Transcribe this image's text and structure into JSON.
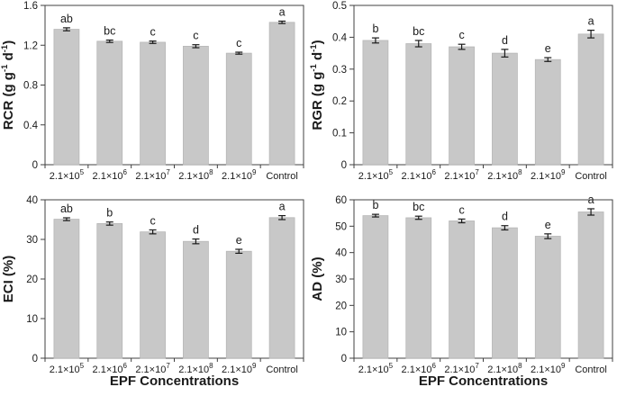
{
  "figure": {
    "background": "#FFFFFF",
    "bar_color": "#C8C8C8",
    "bar_border": "#B5B5B5",
    "axis_color": "#404040",
    "text_color": "#1A1A1A",
    "xlabel": "EPF Concentrations"
  },
  "chart_data": [
    {
      "id": "rcr",
      "type": "bar",
      "ylabel": "RCR (g g-1 d-1)",
      "ylabel_parts": [
        {
          "text": "RCR (g g"
        },
        {
          "text": "-1",
          "sup": true
        },
        {
          "text": " d"
        },
        {
          "text": "-1",
          "sup": true
        },
        {
          "text": ")"
        }
      ],
      "categories": [
        "2.1×10^5",
        "2.1×10^6",
        "2.1×10^7",
        "2.1×10^8",
        "2.1×10^9",
        "Control"
      ],
      "values": [
        1.36,
        1.24,
        1.23,
        1.19,
        1.12,
        1.43
      ],
      "errors": [
        0.015,
        0.012,
        0.012,
        0.015,
        0.01,
        0.012
      ],
      "sig_letters": [
        "ab",
        "bc",
        "c",
        "c",
        "c",
        "a"
      ],
      "ylim": [
        0,
        1.6
      ],
      "yticks": [
        0,
        0.4,
        0.8,
        1.2,
        1.6
      ],
      "ytick_labels": [
        "0",
        "0.4",
        "0.8",
        "1.2",
        "1.6"
      ],
      "grid": false,
      "legend": null
    },
    {
      "id": "rgr",
      "type": "bar",
      "ylabel": "RGR (g g-1 d-1)",
      "ylabel_parts": [
        {
          "text": "RGR (g g"
        },
        {
          "text": "-1",
          "sup": true
        },
        {
          "text": " d"
        },
        {
          "text": "-1",
          "sup": true
        },
        {
          "text": ")"
        }
      ],
      "categories": [
        "2.1×10^5",
        "2.1×10^6",
        "2.1×10^7",
        "2.1×10^8",
        "2.1×10^9",
        "Control"
      ],
      "values": [
        0.39,
        0.38,
        0.37,
        0.35,
        0.33,
        0.41
      ],
      "errors": [
        0.008,
        0.01,
        0.008,
        0.012,
        0.006,
        0.012
      ],
      "sig_letters": [
        "b",
        "bc",
        "c",
        "d",
        "e",
        "a"
      ],
      "ylim": [
        0,
        0.5
      ],
      "yticks": [
        0,
        0.1,
        0.2,
        0.3,
        0.4,
        0.5
      ],
      "ytick_labels": [
        "0",
        "0.1",
        "0.2",
        "0.3",
        "0.4",
        "0.5"
      ],
      "grid": false,
      "legend": null
    },
    {
      "id": "eci",
      "type": "bar",
      "ylabel": "ECI (%)",
      "ylabel_parts": [
        {
          "text": "ECI (%)"
        }
      ],
      "categories": [
        "2.1×10^5",
        "2.1×10^6",
        "2.1×10^7",
        "2.1×10^8",
        "2.1×10^9",
        "Control"
      ],
      "values": [
        35.1,
        34.0,
        31.9,
        29.5,
        27.0,
        35.5
      ],
      "errors": [
        0.35,
        0.4,
        0.5,
        0.6,
        0.5,
        0.5
      ],
      "sig_letters": [
        "ab",
        "b",
        "c",
        "d",
        "e",
        "a"
      ],
      "ylim": [
        0,
        40
      ],
      "yticks": [
        0,
        10,
        20,
        30,
        40
      ],
      "ytick_labels": [
        "0",
        "10",
        "20",
        "30",
        "40"
      ],
      "xlabel": "EPF Concentrations",
      "grid": false,
      "legend": null
    },
    {
      "id": "ad",
      "type": "bar",
      "ylabel": "AD (%)",
      "ylabel_parts": [
        {
          "text": "AD (%)"
        }
      ],
      "categories": [
        "2.1×10^5",
        "2.1×10^6",
        "2.1×10^7",
        "2.1×10^8",
        "2.1×10^9",
        "Control"
      ],
      "values": [
        54.0,
        53.2,
        52.0,
        49.4,
        46.2,
        55.4
      ],
      "errors": [
        0.5,
        0.6,
        0.7,
        0.8,
        0.9,
        1.2
      ],
      "sig_letters": [
        "b",
        "bc",
        "c",
        "d",
        "e",
        "a"
      ],
      "ylim": [
        0,
        60
      ],
      "yticks": [
        0,
        10,
        20,
        30,
        40,
        50,
        60
      ],
      "ytick_labels": [
        "0",
        "10",
        "20",
        "30",
        "40",
        "50",
        "60"
      ],
      "xlabel": "EPF Concentrations",
      "grid": false,
      "legend": null
    }
  ]
}
